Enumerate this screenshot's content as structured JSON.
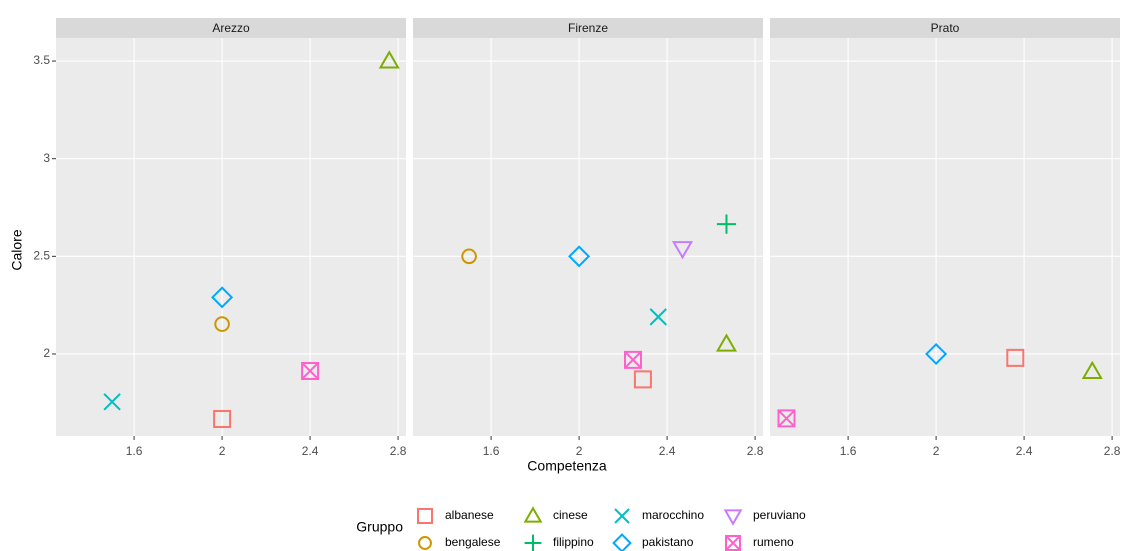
{
  "chart_data": {
    "type": "scatter",
    "facets": [
      "Arezzo",
      "Firenze",
      "Prato"
    ],
    "xlabel": "Competenza",
    "ylabel": "Calore",
    "legend_title": "Gruppo",
    "xlim": [
      1.245,
      2.836
    ],
    "ylim": [
      1.58,
      3.618
    ],
    "xticks": [
      1.6,
      2.0,
      2.4,
      2.8
    ],
    "yticks": [
      2.0,
      2.5,
      3.0,
      3.5
    ],
    "grid": true,
    "legend": "bottom",
    "series": [
      {
        "name": "albanese",
        "color": "#F8766D",
        "shape": "square",
        "x": [
          2.0,
          2.29,
          2.36
        ],
        "values": [
          1.667,
          1.87,
          1.98
        ]
      },
      {
        "name": "bengalese",
        "color": "#CD9600",
        "shape": "circle",
        "x": [
          2.0,
          1.5,
          null
        ],
        "values": [
          2.153,
          2.5,
          null
        ]
      },
      {
        "name": "cinese",
        "color": "#7CAE00",
        "shape": "triangle",
        "x": [
          2.76,
          2.67,
          2.71
        ],
        "values": [
          3.5,
          2.05,
          1.91
        ]
      },
      {
        "name": "filippino",
        "color": "#00BE67",
        "shape": "plus",
        "x": [
          null,
          2.67,
          null
        ],
        "values": [
          null,
          2.665,
          null
        ]
      },
      {
        "name": "marocchino",
        "color": "#00BFC4",
        "shape": "cross",
        "x": [
          1.5,
          2.36,
          null
        ],
        "values": [
          1.755,
          2.19,
          null
        ]
      },
      {
        "name": "pakistano",
        "color": "#00A9FF",
        "shape": "diamond",
        "x": [
          2.0,
          2.0,
          2.0
        ],
        "values": [
          2.29,
          2.5,
          2.0
        ]
      },
      {
        "name": "peruviano",
        "color": "#C77CFF",
        "shape": "triangle-down",
        "x": [
          null,
          2.47,
          null
        ],
        "values": [
          null,
          2.54,
          null
        ]
      },
      {
        "name": "rumeno",
        "color": "#FF61CC",
        "shape": "square-cross",
        "x": [
          2.4,
          2.245,
          1.32
        ],
        "values": [
          1.913,
          1.97,
          1.67
        ]
      }
    ]
  }
}
